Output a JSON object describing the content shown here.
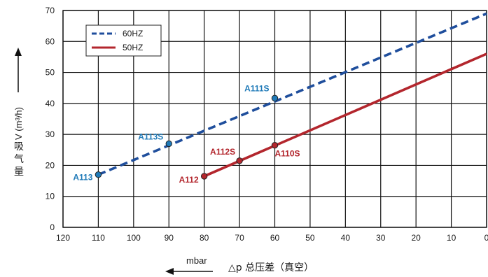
{
  "chart_data": {
    "type": "line",
    "x_ticks": [
      120,
      110,
      100,
      90,
      80,
      70,
      60,
      50,
      40,
      30,
      20,
      10,
      0
    ],
    "y_ticks": [
      0,
      10,
      20,
      30,
      40,
      50,
      60,
      70
    ],
    "xlim": [
      120,
      0
    ],
    "ylim": [
      0,
      70
    ],
    "x_reversed": true,
    "grid": true,
    "legend_position": "top-left",
    "series": [
      {
        "name": "60HZ",
        "style": "dashed",
        "color": "#1f4e9c",
        "label_color": "#1f7ab8",
        "line": [
          [
            110,
            17
          ],
          [
            0,
            69
          ]
        ],
        "points": [
          {
            "label": "A113",
            "x": 110,
            "y": 17
          },
          {
            "label": "A113S",
            "x": 90,
            "y": 27
          },
          {
            "label": "A111S",
            "x": 60,
            "y": 41.7
          }
        ]
      },
      {
        "name": "50HZ",
        "style": "solid",
        "color": "#b3262d",
        "label_color": "#b3262d",
        "line": [
          [
            80,
            16.5
          ],
          [
            0,
            56
          ]
        ],
        "points": [
          {
            "label": "A112",
            "x": 80,
            "y": 16.5
          },
          {
            "label": "A112S",
            "x": 70,
            "y": 21.5
          },
          {
            "label": "A110S",
            "x": 60,
            "y": 26.5
          }
        ]
      }
    ],
    "ylabel": "吸气量 V (m³/h)",
    "xlabel_unit": "mbar",
    "xlabel": "△p 总压差（真空）"
  }
}
